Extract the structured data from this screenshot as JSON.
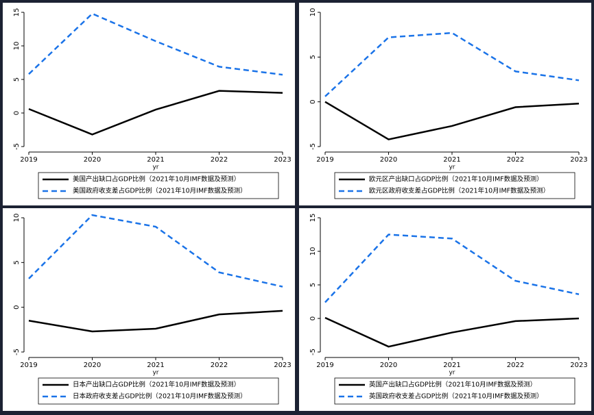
{
  "chart_data": [
    {
      "type": "line",
      "xlabel": "yr",
      "x": [
        2019,
        2020,
        2021,
        2022,
        2023
      ],
      "xlim": [
        2019,
        2023
      ],
      "xticks": [
        2019,
        2020,
        2021,
        2022,
        2023
      ],
      "ylim": [
        -5,
        15
      ],
      "yticks": [
        -5,
        0,
        5,
        10,
        15
      ],
      "series": [
        {
          "name": "美国产出缺口占GDP比例（2021年10月IMF数据及预测）",
          "color": "#000000",
          "values": [
            0.6,
            -3.2,
            0.5,
            3.3,
            3.0
          ]
        },
        {
          "name": "美国政府收支差占GDP比例（2021年10月IMF数据及预测）",
          "color": "#1a73e8",
          "values": [
            5.8,
            14.8,
            10.7,
            6.9,
            5.7
          ]
        }
      ]
    },
    {
      "type": "line",
      "xlabel": "yr",
      "x": [
        2019,
        2020,
        2021,
        2022,
        2023
      ],
      "xlim": [
        2019,
        2023
      ],
      "xticks": [
        2019,
        2020,
        2021,
        2022,
        2023
      ],
      "ylim": [
        -5,
        10
      ],
      "yticks": [
        -5,
        0,
        5,
        10
      ],
      "series": [
        {
          "name": "欧元区产出缺口占GDP比例（2021年10月IMF数据及预测）",
          "color": "#000000",
          "values": [
            0.0,
            -4.2,
            -2.7,
            -0.6,
            -0.2
          ]
        },
        {
          "name": "欧元区政府收支差占GDP比例（2021年10月IMF数据及预测）",
          "color": "#1a73e8",
          "values": [
            0.6,
            7.2,
            7.7,
            3.4,
            2.4
          ]
        }
      ]
    },
    {
      "type": "line",
      "xlabel": "yr",
      "x": [
        2019,
        2020,
        2021,
        2022,
        2023
      ],
      "xlim": [
        2019,
        2023
      ],
      "xticks": [
        2019,
        2020,
        2021,
        2022,
        2023
      ],
      "ylim": [
        -5,
        10
      ],
      "yticks": [
        -5,
        0,
        5,
        10
      ],
      "series": [
        {
          "name": "日本产出缺口占GDP比例（2021年10月IMF数据及预测）",
          "color": "#000000",
          "values": [
            -1.5,
            -2.7,
            -2.4,
            -0.8,
            -0.4
          ]
        },
        {
          "name": "日本政府收支差占GDP比例（2021年10月IMF数据及预测）",
          "color": "#1a73e8",
          "values": [
            3.2,
            10.3,
            9.0,
            3.9,
            2.3
          ]
        }
      ]
    },
    {
      "type": "line",
      "xlabel": "yr",
      "x": [
        2019,
        2020,
        2021,
        2022,
        2023
      ],
      "xlim": [
        2019,
        2023
      ],
      "xticks": [
        2019,
        2020,
        2021,
        2022,
        2023
      ],
      "ylim": [
        -5,
        15
      ],
      "yticks": [
        -5,
        0,
        5,
        10,
        15
      ],
      "series": [
        {
          "name": "英国产出缺口占GDP比例（2021年10月IMF数据及预测）",
          "color": "#000000",
          "values": [
            0.1,
            -4.2,
            -2.1,
            -0.4,
            0.0
          ]
        },
        {
          "name": "英国政府收支差占GDP比例（2021年10月IMF数据及预测）",
          "color": "#1a73e8",
          "values": [
            2.4,
            12.5,
            11.9,
            5.6,
            3.6
          ]
        }
      ]
    }
  ]
}
